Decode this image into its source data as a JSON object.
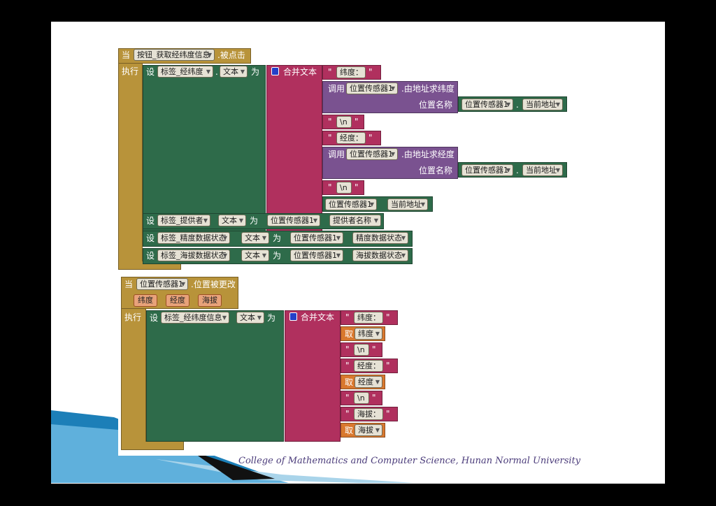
{
  "event1": {
    "when": "当",
    "component": "按钮_获取经纬度信息",
    "event": ".被点击",
    "do": "执行",
    "set": "设",
    "target": "标签_经纬度",
    "prop": "文本",
    "to": "为",
    "join": "合并文本",
    "str_lat": "纬度：",
    "call": "调用",
    "sensor": "位置传感器1",
    "method_lat": ".由地址求纬度",
    "param": "位置名称",
    "current_addr": "当前地址",
    "str_nl": "\\n",
    "str_lng": "经度：",
    "method_lng": ".由地址求经度",
    "set2_target": "标签_提供者",
    "set2_prop": "提供者名称",
    "set3_target": "标签_精度数据状态",
    "set3_prop": "精度数据状态",
    "set4_target": "标签_海拔数据状态",
    "set4_prop": "海拔数据状态",
    "dot": "."
  },
  "event2": {
    "when": "当",
    "component": "位置传感器1",
    "event": ".位置被更改",
    "params": [
      "纬度",
      "经度",
      "海拔"
    ],
    "do": "执行",
    "set": "设",
    "target": "标签_经纬度信息",
    "prop": "文本",
    "to": "为",
    "join": "合并文本",
    "str_lat": "纬度：",
    "get": "取",
    "get_lat": "纬度",
    "str_nl": "\\n",
    "str_lng": "经度：",
    "get_lng": "经度",
    "str_alt": "海拔：",
    "get_alt": "海拔"
  },
  "footer": "College of Mathematics and Computer Science,    Hunan Normal University",
  "colors": {
    "event": "#b8933a",
    "setter": "#2e6b4a",
    "text": "#b0305e",
    "call": "#7a5290",
    "getter": "#d9782e"
  }
}
